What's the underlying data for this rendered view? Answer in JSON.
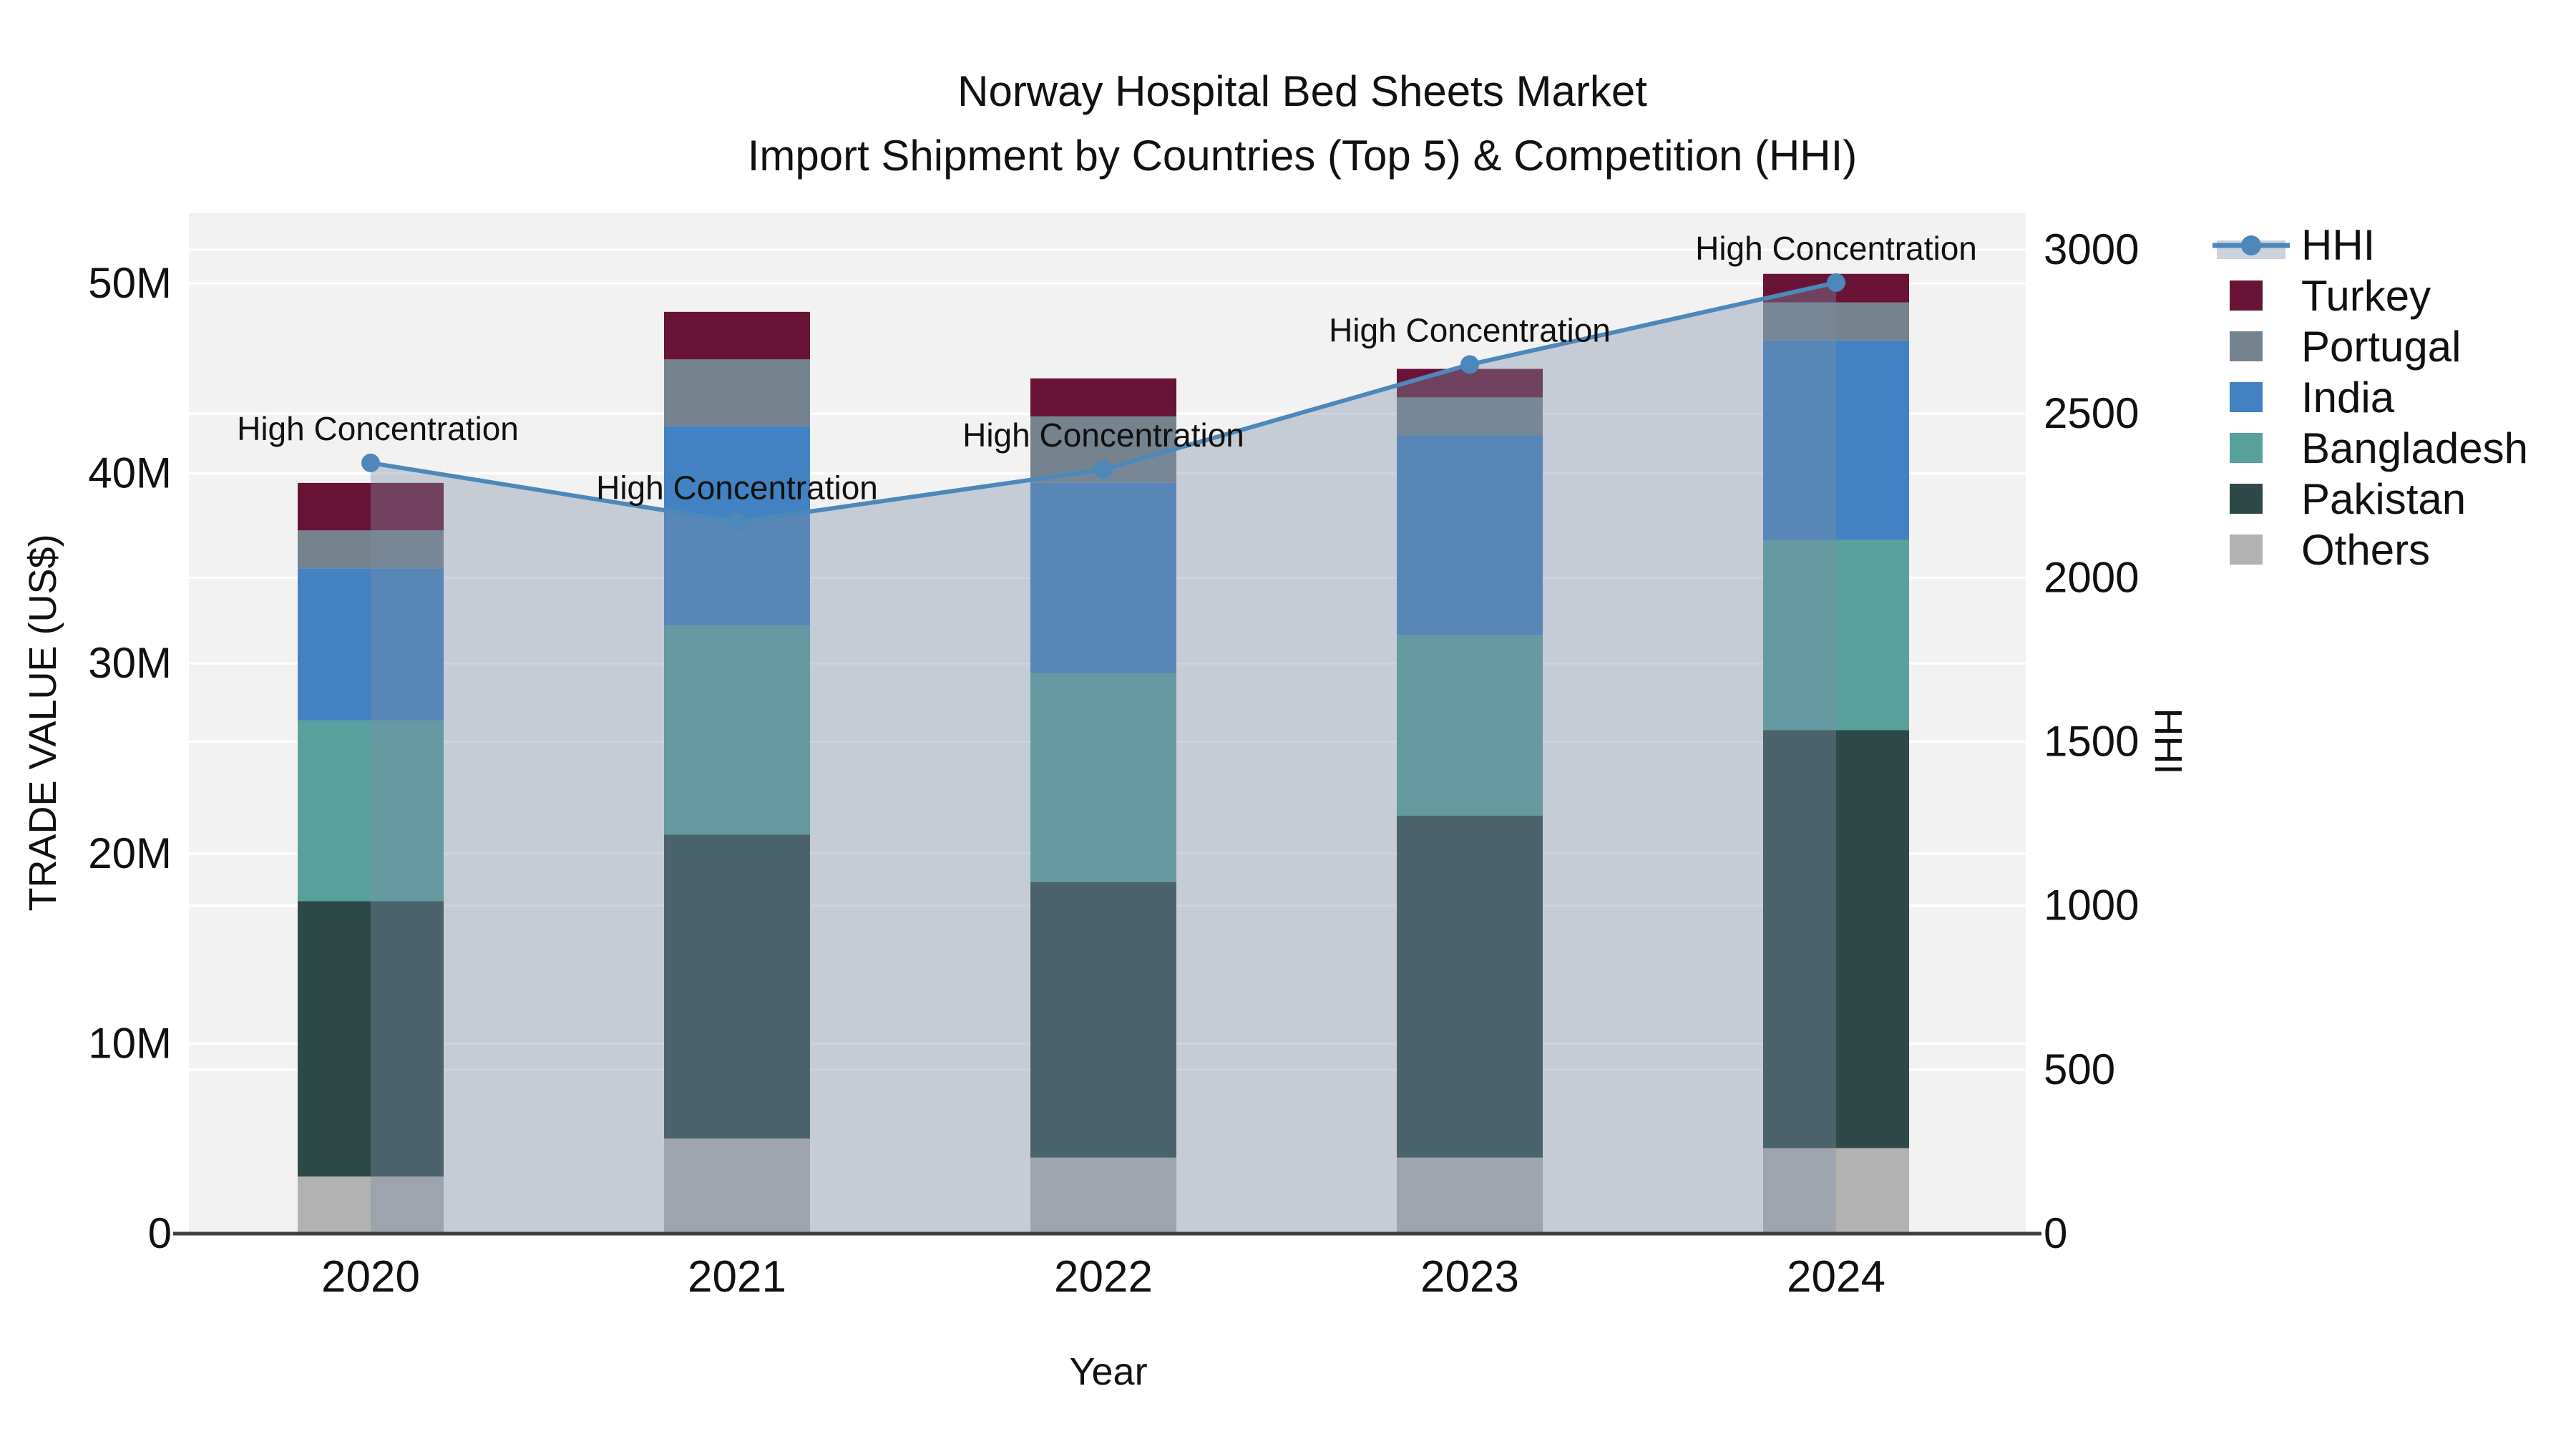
{
  "title": {
    "line1": "Norway Hospital Bed Sheets Market",
    "line2": "Import Shipment by Countries (Top 5) & Competition (HHI)"
  },
  "axes": {
    "x_title": "Year",
    "y_left_title": "TRADE VALUE (US$)",
    "y_right_title": "HHI",
    "x_ticks": [
      "2020",
      "2021",
      "2022",
      "2023",
      "2024"
    ],
    "y_left_ticks": [
      "0",
      "10M",
      "20M",
      "30M",
      "40M",
      "50M"
    ],
    "y_left_tick_values": [
      0,
      10,
      20,
      30,
      40,
      50
    ],
    "y_right_ticks": [
      "0",
      "500",
      "1000",
      "1500",
      "2000",
      "2500",
      "3000"
    ],
    "y_right_tick_values": [
      0,
      500,
      1000,
      1500,
      2000,
      2500,
      3000
    ]
  },
  "legend": {
    "items": [
      {
        "label": "HHI",
        "color": "#4d88ba",
        "kind": "line"
      },
      {
        "label": "Turkey",
        "color": "#691336",
        "kind": "bar"
      },
      {
        "label": "Portugal",
        "color": "#75838f",
        "kind": "bar"
      },
      {
        "label": "India",
        "color": "#4282c2",
        "kind": "bar"
      },
      {
        "label": "Bangladesh",
        "color": "#58a19f",
        "kind": "bar"
      },
      {
        "label": "Pakistan",
        "color": "#2d4a49",
        "kind": "bar"
      },
      {
        "label": "Others",
        "color": "#b2b2b2",
        "kind": "bar"
      }
    ]
  },
  "annotations": {
    "label": "High Concentration",
    "per_point": [
      "High Concentration",
      "High Concentration",
      "High Concentration",
      "High Concentration",
      "High Concentration"
    ]
  },
  "colors": {
    "plot_bg": "#f2f2f2",
    "grid": "#ffffff",
    "axis_line": "#3f3f3f",
    "hhi_line": "#4d88ba",
    "hhi_area_rgba": "rgba(125,143,165,0.38)",
    "hhi_area_swatch": "#ccd3dd",
    "text": "#111111"
  },
  "chart_data": {
    "type": "bar",
    "subtype": "stacked-bars-with-line",
    "categories": [
      "2020",
      "2021",
      "2022",
      "2023",
      "2024"
    ],
    "stack_order_bottom_to_top": [
      "Others",
      "Pakistan",
      "Bangladesh",
      "India",
      "Portugal",
      "Turkey"
    ],
    "series": [
      {
        "name": "Turkey",
        "color": "#691336",
        "values": [
          2.5,
          2.5,
          2.0,
          1.5,
          1.5
        ]
      },
      {
        "name": "Portugal",
        "color": "#75838f",
        "values": [
          2.0,
          3.5,
          3.5,
          2.0,
          2.0
        ]
      },
      {
        "name": "India",
        "color": "#4282c2",
        "values": [
          8.0,
          10.5,
          10.0,
          10.5,
          10.5
        ]
      },
      {
        "name": "Bangladesh",
        "color": "#58a19f",
        "values": [
          9.5,
          11.0,
          11.0,
          9.5,
          10.0
        ]
      },
      {
        "name": "Pakistan",
        "color": "#2d4a49",
        "values": [
          14.5,
          16.0,
          14.5,
          18.0,
          22.0
        ]
      },
      {
        "name": "Others",
        "color": "#b2b2b2",
        "values": [
          3.0,
          5.0,
          4.0,
          4.0,
          4.5
        ]
      }
    ],
    "bar_totals_musd": [
      39.5,
      48.5,
      45.0,
      45.5,
      50.5
    ],
    "line_series": {
      "name": "HHI",
      "color": "#4d88ba",
      "values": [
        2350,
        2170,
        2330,
        2650,
        2900
      ],
      "area_fill": true
    },
    "title": "Norway Hospital Bed Sheets Market — Import Shipment by Countries (Top 5) & Competition (HHI)",
    "xlabel": "Year",
    "ylabel_left": "TRADE VALUE (US$)",
    "ylabel_right": "HHI",
    "ylim_left_musd": [
      0,
      50
    ],
    "ylim_right_hhi": [
      0,
      3000
    ],
    "grid": true,
    "legend_position": "right-outside"
  }
}
